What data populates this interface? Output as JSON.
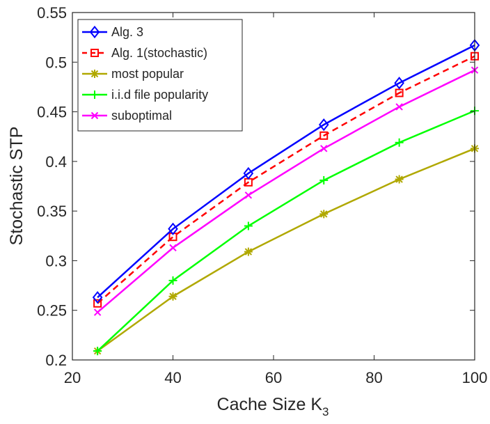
{
  "chart_data": {
    "type": "line",
    "title": "",
    "xlabel": "Cache Size K",
    "xlabel_subscript": "3",
    "ylabel": "Stochastic STP",
    "xlim": [
      20,
      100
    ],
    "ylim": [
      0.2,
      0.55
    ],
    "xticks": [
      20,
      40,
      60,
      80,
      100
    ],
    "xtick_labels": [
      "20",
      "40",
      "60",
      "80",
      "100"
    ],
    "yticks": [
      0.2,
      0.25,
      0.3,
      0.35,
      0.4,
      0.45,
      0.5,
      0.55
    ],
    "ytick_labels": [
      "0.2",
      "0.25",
      "0.3",
      "0.35",
      "0.4",
      "0.45",
      "0.5",
      "0.55"
    ],
    "grid": false,
    "legend_position": "top-left",
    "x": [
      25,
      40,
      55,
      70,
      85,
      100
    ],
    "series": [
      {
        "name": "Alg. 3",
        "values": [
          0.263,
          0.332,
          0.388,
          0.437,
          0.479,
          0.517
        ],
        "color": "#0000ff",
        "marker": "diamond",
        "line_style": "solid"
      },
      {
        "name": "Alg. 1(stochastic)",
        "values": [
          0.257,
          0.324,
          0.379,
          0.426,
          0.469,
          0.506
        ],
        "color": "#ff0000",
        "marker": "square",
        "line_style": "dashed"
      },
      {
        "name": "most popular",
        "values": [
          0.209,
          0.264,
          0.309,
          0.347,
          0.382,
          0.413
        ],
        "color": "#b0a800",
        "marker": "asterisk",
        "line_style": "solid"
      },
      {
        "name": "i.i.d file popularity",
        "values": [
          0.209,
          0.28,
          0.335,
          0.381,
          0.419,
          0.451
        ],
        "color": "#00ff00",
        "marker": "plus",
        "line_style": "solid"
      },
      {
        "name": "suboptimal",
        "values": [
          0.248,
          0.313,
          0.366,
          0.413,
          0.455,
          0.492
        ],
        "color": "#ff00ff",
        "marker": "cross",
        "line_style": "solid"
      }
    ]
  }
}
